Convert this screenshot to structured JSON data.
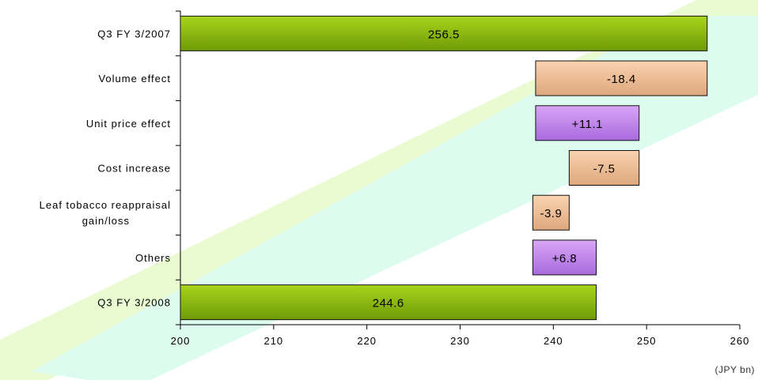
{
  "chart_data": {
    "type": "bar",
    "subtype": "horizontal-waterfall",
    "unit": "(JPY bn)",
    "xlim": [
      200,
      260
    ],
    "x_ticks": [
      200,
      210,
      220,
      230,
      240,
      250,
      260
    ],
    "x_tick_labels": [
      "200",
      "210",
      "220",
      "230",
      "240",
      "250",
      "260"
    ],
    "grid": false,
    "legend": "none",
    "bars": [
      {
        "category": "Q3 FY 3/2007",
        "label_lines": [
          "Q3 FY 3/2007"
        ],
        "start": 200,
        "end": 256.5,
        "label": "256.5",
        "kind": "total"
      },
      {
        "category": "Volume effect",
        "label_lines": [
          "Volume effect"
        ],
        "start": 238.1,
        "end": 256.5,
        "label": "-18.4",
        "kind": "decrease"
      },
      {
        "category": "Unit price effect",
        "label_lines": [
          "Unit price effect"
        ],
        "start": 238.1,
        "end": 249.2,
        "label": "+11.1",
        "kind": "increase"
      },
      {
        "category": "Cost increase",
        "label_lines": [
          "Cost increase"
        ],
        "start": 241.7,
        "end": 249.2,
        "label": "-7.5",
        "kind": "decrease"
      },
      {
        "category": "Leaf tobacco reappraisal gain/loss",
        "label_lines": [
          "Leaf tobacco reappraisal",
          "gain/loss"
        ],
        "start": 237.8,
        "end": 241.7,
        "label": "-3.9",
        "kind": "decrease"
      },
      {
        "category": "Others",
        "label_lines": [
          "Others"
        ],
        "start": 237.8,
        "end": 244.6,
        "label": "+6.8",
        "kind": "increase"
      },
      {
        "category": "Q3 FY 3/2008",
        "label_lines": [
          "Q3 FY 3/2008"
        ],
        "start": 200,
        "end": 244.6,
        "label": "244.6",
        "kind": "total"
      }
    ],
    "colors": {
      "total_top": "#a8d51c",
      "total_bottom": "#6f9a06",
      "decrease_top": "#fad3b0",
      "decrease_bottom": "#dea77c",
      "increase_top": "#d8a6f6",
      "increase_bottom": "#a969dd",
      "bar_border": "#111111",
      "axis": "#000000",
      "background_band": "#ddfcef",
      "background_band_edge": "#eafbd2"
    }
  }
}
